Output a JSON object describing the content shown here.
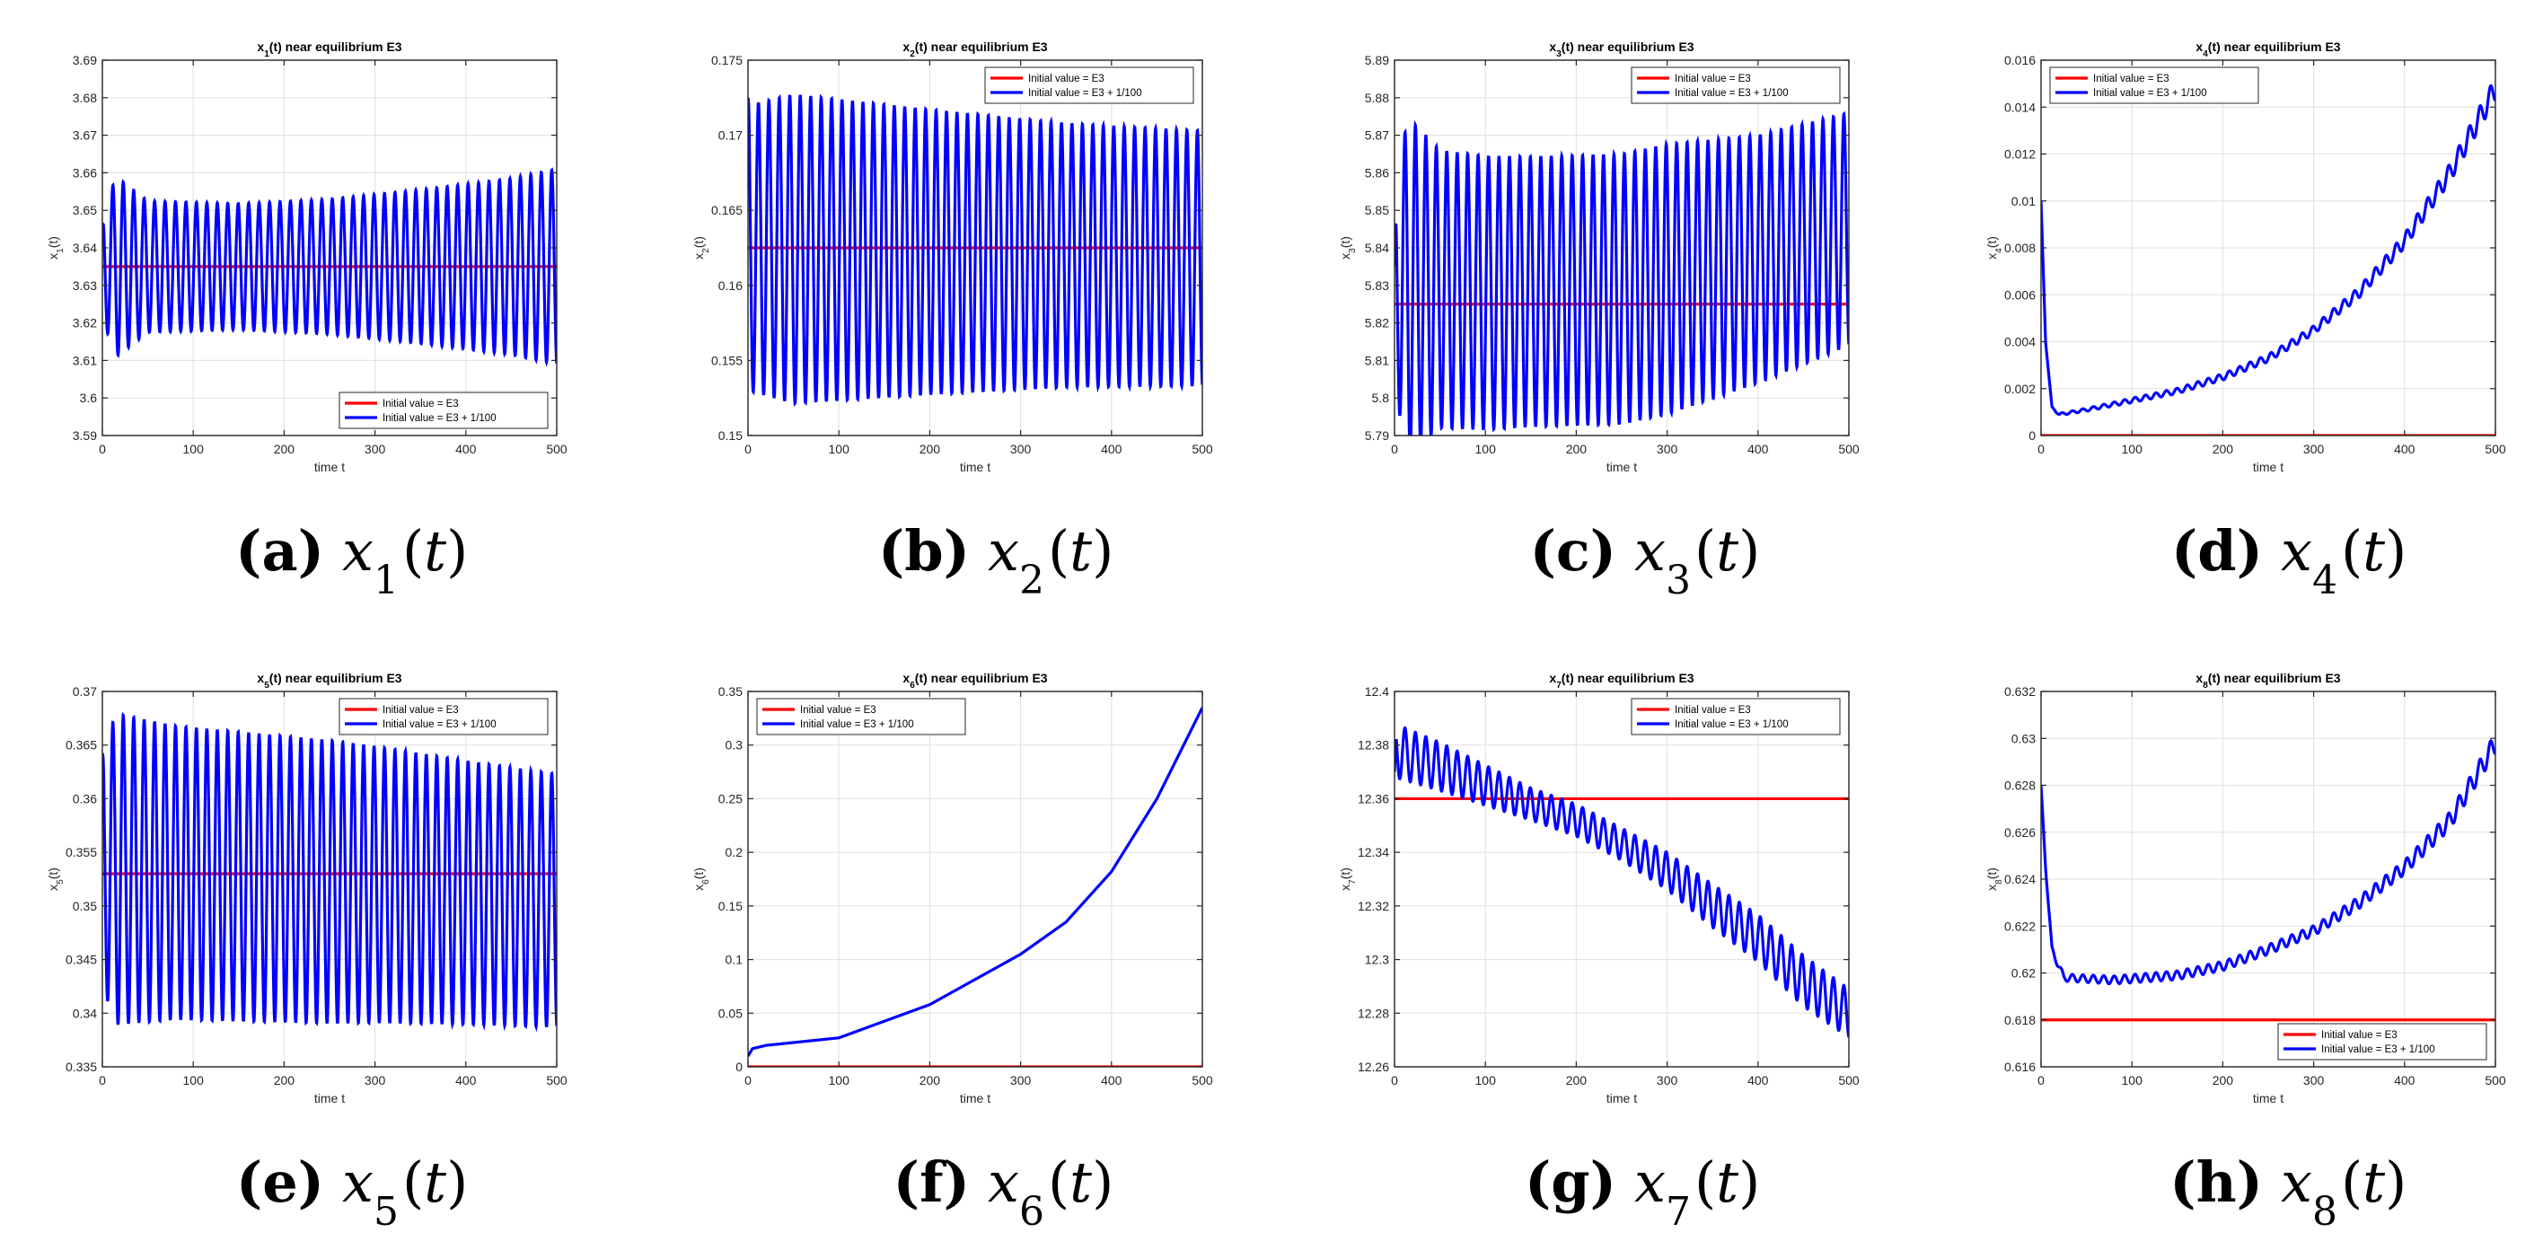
{
  "figure": {
    "legend_labels": [
      "Initial value = E3",
      "Initial value = E3 + 1/100"
    ],
    "series_colors": {
      "equilibrium": "#ff0000",
      "perturbed": "#0000ff"
    },
    "xlabel": "time t"
  },
  "chart_data": [
    {
      "id": "a",
      "type": "line",
      "var_index": "1",
      "title": "x1(t) near equilibrium E3",
      "ylabel": "x1(t)",
      "xlabel": "time t",
      "caption_letter": "(a)",
      "caption_text": "x1(t)",
      "xlim": [
        0,
        500
      ],
      "ylim": [
        3.59,
        3.69
      ],
      "xticks": [
        0,
        100,
        200,
        300,
        400,
        500
      ],
      "yticks": [
        3.59,
        3.6,
        3.61,
        3.62,
        3.63,
        3.64,
        3.65,
        3.66,
        3.67,
        3.68,
        3.69
      ],
      "yticklabels": [
        "3.59",
        "3.6",
        "3.61",
        "3.62",
        "3.63",
        "3.64",
        "3.65",
        "3.66",
        "3.67",
        "3.68",
        "3.69"
      ],
      "legend": "bottom-right",
      "series": [
        {
          "name": "Initial value = E3",
          "color": "#ff0000",
          "kind": "constant",
          "value": 3.635
        },
        {
          "name": "Initial value = E3 + 1/100",
          "color": "#0000ff",
          "kind": "oscillation",
          "start": 3.645,
          "period": 11.5,
          "center": [
            [
              0,
              3.635
            ],
            [
              500,
              3.635
            ]
          ],
          "amp": [
            [
              0,
              0.014
            ],
            [
              15,
              0.024
            ],
            [
              50,
              0.0175
            ],
            [
              150,
              0.0168
            ],
            [
              250,
              0.018
            ],
            [
              350,
              0.0205
            ],
            [
              450,
              0.0235
            ],
            [
              500,
              0.026
            ]
          ]
        }
      ]
    },
    {
      "id": "b",
      "type": "line",
      "var_index": "2",
      "title": "x2(t) near equilibrium E3",
      "ylabel": "x2(t)",
      "xlabel": "time t",
      "caption_letter": "(b)",
      "caption_text": "x2(t)",
      "xlim": [
        0,
        500
      ],
      "ylim": [
        0.15,
        0.175
      ],
      "xticks": [
        0,
        100,
        200,
        300,
        400,
        500
      ],
      "yticks": [
        0.15,
        0.155,
        0.16,
        0.165,
        0.17,
        0.175
      ],
      "yticklabels": [
        "0.15",
        "0.155",
        "0.16",
        "0.165",
        "0.17",
        "0.175"
      ],
      "legend": "top-right",
      "series": [
        {
          "name": "Initial value = E3",
          "color": "#ff0000",
          "kind": "constant",
          "value": 0.1625
        },
        {
          "name": "Initial value = E3 + 1/100",
          "color": "#0000ff",
          "kind": "oscillation",
          "start": 0.1725,
          "period": 11.5,
          "center": [
            [
              0,
              0.1625
            ],
            [
              500,
              0.1618
            ]
          ],
          "amp": [
            [
              0,
              0.0095
            ],
            [
              50,
              0.0103
            ],
            [
              200,
              0.0095
            ],
            [
              350,
              0.0088
            ],
            [
              500,
              0.0085
            ]
          ]
        }
      ]
    },
    {
      "id": "c",
      "type": "line",
      "var_index": "3",
      "title": "x3(t) near equilibrium E3",
      "ylabel": "x3(t)",
      "xlabel": "time t",
      "caption_letter": "(c)",
      "caption_text": "x3(t)",
      "xlim": [
        0,
        500
      ],
      "ylim": [
        5.79,
        5.89
      ],
      "xticks": [
        0,
        100,
        200,
        300,
        400,
        500
      ],
      "yticks": [
        5.79,
        5.8,
        5.81,
        5.82,
        5.83,
        5.84,
        5.85,
        5.86,
        5.87,
        5.88,
        5.89
      ],
      "yticklabels": [
        "5.79",
        "5.8",
        "5.81",
        "5.82",
        "5.83",
        "5.84",
        "5.85",
        "5.86",
        "5.87",
        "5.88",
        "5.89"
      ],
      "legend": "top-right",
      "series": [
        {
          "name": "Initial value = E3",
          "color": "#ff0000",
          "kind": "constant",
          "value": 5.825
        },
        {
          "name": "Initial value = E3 + 1/100",
          "color": "#0000ff",
          "kind": "oscillation",
          "start": 5.835,
          "period": 11.5,
          "center": [
            [
              0,
              5.83
            ],
            [
              100,
              5.828
            ],
            [
              250,
              5.829
            ],
            [
              400,
              5.837
            ],
            [
              500,
              5.845
            ]
          ],
          "amp": [
            [
              0,
              0.028
            ],
            [
              15,
              0.045
            ],
            [
              50,
              0.037
            ],
            [
              150,
              0.036
            ],
            [
              300,
              0.036
            ],
            [
              400,
              0.033
            ],
            [
              500,
              0.031
            ]
          ]
        }
      ]
    },
    {
      "id": "d",
      "type": "line",
      "var_index": "4",
      "title": "x4(t) near equilibrium E3",
      "ylabel": "x4(t)",
      "xlabel": "time t",
      "caption_letter": "(d)",
      "caption_text": "x4(t)",
      "xlim": [
        0,
        500
      ],
      "ylim": [
        0,
        0.016
      ],
      "xticks": [
        0,
        100,
        200,
        300,
        400,
        500
      ],
      "yticks": [
        0,
        0.002,
        0.004,
        0.006,
        0.008,
        0.01,
        0.012,
        0.014,
        0.016
      ],
      "yticklabels": [
        "0",
        "0.002",
        "0.004",
        "0.006",
        "0.008",
        "0.01",
        "0.012",
        "0.014",
        "0.016"
      ],
      "legend": "top-left",
      "series": [
        {
          "name": "Initial value = E3",
          "color": "#ff0000",
          "kind": "constant",
          "value": 0
        },
        {
          "name": "Initial value = E3 + 1/100",
          "color": "#0000ff",
          "kind": "oscillation",
          "period": 11.5,
          "center": [
            [
              0,
              0.01
            ],
            [
              5,
              0.004
            ],
            [
              12,
              0.0012
            ],
            [
              20,
              0.0009
            ],
            [
              50,
              0.0011
            ],
            [
              100,
              0.0015
            ],
            [
              150,
              0.0019
            ],
            [
              200,
              0.0025
            ],
            [
              250,
              0.0033
            ],
            [
              300,
              0.0045
            ],
            [
              350,
              0.0061
            ],
            [
              400,
              0.0083
            ],
            [
              450,
              0.0112
            ],
            [
              500,
              0.0148
            ]
          ],
          "amp": [
            [
              0,
              0
            ],
            [
              20,
              5e-05
            ],
            [
              100,
              0.0001
            ],
            [
              300,
              0.00018
            ],
            [
              400,
              0.0003
            ],
            [
              500,
              0.0005
            ]
          ]
        }
      ]
    },
    {
      "id": "e",
      "type": "line",
      "var_index": "5",
      "title": "x5(t) near equilibrium E3",
      "ylabel": "x5(t)",
      "xlabel": "time t",
      "caption_letter": "(e)",
      "caption_text": "x5(t)",
      "xlim": [
        0,
        500
      ],
      "ylim": [
        0.335,
        0.37
      ],
      "xticks": [
        0,
        100,
        200,
        300,
        400,
        500
      ],
      "yticks": [
        0.335,
        0.34,
        0.345,
        0.35,
        0.355,
        0.36,
        0.365,
        0.37
      ],
      "yticklabels": [
        "0.335",
        "0.34",
        "0.345",
        "0.35",
        "0.355",
        "0.36",
        "0.365",
        "0.37"
      ],
      "legend": "top-right",
      "series": [
        {
          "name": "Initial value = E3",
          "color": "#ff0000",
          "kind": "constant",
          "value": 0.353
        },
        {
          "name": "Initial value = E3 + 1/100",
          "color": "#0000ff",
          "kind": "oscillation",
          "start": 0.364,
          "period": 11.5,
          "center": [
            [
              0,
              0.3535
            ],
            [
              100,
              0.353
            ],
            [
              300,
              0.352
            ],
            [
              500,
              0.3505
            ]
          ],
          "amp": [
            [
              0,
              0.011
            ],
            [
              15,
              0.0145
            ],
            [
              80,
              0.0137
            ],
            [
              250,
              0.0132
            ],
            [
              400,
              0.0123
            ],
            [
              500,
              0.0118
            ]
          ]
        }
      ]
    },
    {
      "id": "f",
      "type": "line",
      "var_index": "6",
      "title": "x6(t) near equilibrium E3",
      "ylabel": "x6(t)",
      "xlabel": "time t",
      "caption_letter": "(f)",
      "caption_text": "x6(t)",
      "xlim": [
        0,
        500
      ],
      "ylim": [
        0,
        0.35
      ],
      "xticks": [
        0,
        100,
        200,
        300,
        400,
        500
      ],
      "yticks": [
        0,
        0.05,
        0.1,
        0.15,
        0.2,
        0.25,
        0.3,
        0.35
      ],
      "yticklabels": [
        "0",
        "0.05",
        "0.1",
        "0.15",
        "0.2",
        "0.25",
        "0.3",
        "0.35"
      ],
      "legend": "top-left",
      "series": [
        {
          "name": "Initial value = E3",
          "color": "#ff0000",
          "kind": "constant",
          "value": 0
        },
        {
          "name": "Initial value = E3 + 1/100",
          "color": "#0000ff",
          "kind": "oscillation",
          "period": 11.5,
          "center": [
            [
              0,
              0.01
            ],
            [
              5,
              0.017
            ],
            [
              20,
              0.02
            ],
            [
              100,
              0.027
            ],
            [
              200,
              0.058
            ],
            [
              300,
              0.105
            ],
            [
              350,
              0.135
            ],
            [
              400,
              0.182
            ],
            [
              450,
              0.25
            ],
            [
              500,
              0.335
            ]
          ],
          "amp": [
            [
              0,
              0
            ],
            [
              500,
              0
            ]
          ]
        }
      ]
    },
    {
      "id": "g",
      "type": "line",
      "var_index": "7",
      "title": "x7(t) near equilibrium E3",
      "ylabel": "x7(t)",
      "xlabel": "time t",
      "caption_letter": "(g)",
      "caption_text": "x7(t)",
      "xlim": [
        0,
        500
      ],
      "ylim": [
        12.26,
        12.4
      ],
      "xticks": [
        0,
        100,
        200,
        300,
        400,
        500
      ],
      "yticks": [
        12.26,
        12.28,
        12.3,
        12.32,
        12.34,
        12.36,
        12.38,
        12.4
      ],
      "yticklabels": [
        "12.26",
        "12.28",
        "12.3",
        "12.32",
        "12.34",
        "12.36",
        "12.38",
        "12.4"
      ],
      "legend": "top-right",
      "series": [
        {
          "name": "Initial value = E3",
          "color": "#ff0000",
          "kind": "constant",
          "value": 12.36
        },
        {
          "name": "Initial value = E3 + 1/100",
          "color": "#0000ff",
          "kind": "oscillation",
          "start": 12.37,
          "period": 11.5,
          "center": [
            [
              0,
              12.378
            ],
            [
              50,
              12.372
            ],
            [
              100,
              12.365
            ],
            [
              150,
              12.358
            ],
            [
              200,
              12.352
            ],
            [
              250,
              12.343
            ],
            [
              300,
              12.333
            ],
            [
              350,
              12.32
            ],
            [
              400,
              12.308
            ],
            [
              450,
              12.292
            ],
            [
              500,
              12.28
            ]
          ],
          "amp": [
            [
              0,
              0.01
            ],
            [
              50,
              0.009
            ],
            [
              150,
              0.006
            ],
            [
              250,
              0.006
            ],
            [
              350,
              0.008
            ],
            [
              450,
              0.0095
            ],
            [
              500,
              0.009
            ]
          ]
        }
      ]
    },
    {
      "id": "h",
      "type": "line",
      "var_index": "8",
      "title": "x8(t) near equilibrium E3",
      "ylabel": "x8(t)",
      "xlabel": "time t",
      "caption_letter": "(h)",
      "caption_text": "x8(t)",
      "xlim": [
        0,
        500
      ],
      "ylim": [
        0.616,
        0.632
      ],
      "xticks": [
        0,
        100,
        200,
        300,
        400,
        500
      ],
      "yticks": [
        0.616,
        0.618,
        0.62,
        0.622,
        0.624,
        0.626,
        0.628,
        0.63,
        0.632
      ],
      "yticklabels": [
        "0.616",
        "0.618",
        "0.62",
        "0.622",
        "0.624",
        "0.626",
        "0.628",
        "0.63",
        "0.632"
      ],
      "legend": "bottom-right",
      "series": [
        {
          "name": "Initial value = E3",
          "color": "#ff0000",
          "kind": "constant",
          "value": 0.618
        },
        {
          "name": "Initial value = E3 + 1/100",
          "color": "#0000ff",
          "kind": "oscillation",
          "period": 11.5,
          "center": [
            [
              0,
              0.628
            ],
            [
              5,
              0.6245
            ],
            [
              12,
              0.621
            ],
            [
              25,
              0.6198
            ],
            [
              80,
              0.6197
            ],
            [
              150,
              0.6199
            ],
            [
              200,
              0.6203
            ],
            [
              250,
              0.621
            ],
            [
              300,
              0.6218
            ],
            [
              350,
              0.623
            ],
            [
              400,
              0.6245
            ],
            [
              450,
              0.6265
            ],
            [
              500,
              0.6298
            ]
          ],
          "amp": [
            [
              0,
              0
            ],
            [
              15,
              0.00015
            ],
            [
              100,
              0.00018
            ],
            [
              300,
              0.00022
            ],
            [
              400,
              0.0003
            ],
            [
              500,
              0.00045
            ]
          ]
        }
      ]
    }
  ]
}
